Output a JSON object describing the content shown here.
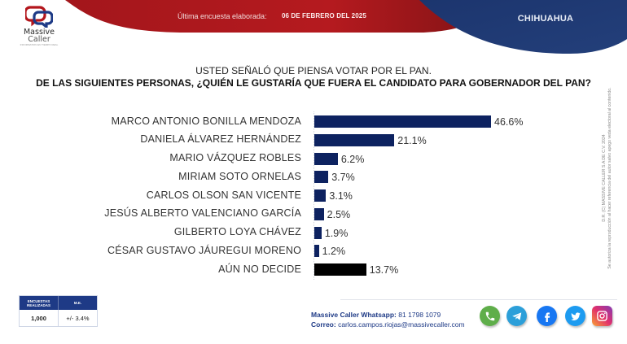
{
  "header": {
    "brand_line1": "Massive",
    "brand_line2": "Caller",
    "brand_tagline": "INFORMATION EN TIEMPO REAL",
    "survey_label": "Última encuesta elaborada:",
    "survey_date": "06 DE FEBRERO DEL 2025",
    "state": "CHIHUAHUA",
    "colors": {
      "red": "#b0181d",
      "navy": "#1f3467"
    }
  },
  "chart_data": {
    "type": "bar",
    "orientation": "horizontal",
    "subtitle": "USTED SEÑALÓ QUE PIENSA VOTAR POR EL PAN.",
    "title": "DE LAS SIGUIENTES PERSONAS, ¿QUIÉN LE GUSTARÍA QUE FUERA EL CANDIDATO PARA GOBERNADOR DEL PAN?",
    "categories": [
      "MARCO ANTONIO BONILLA MENDOZA",
      "DANIELA ÁLVAREZ HERNÁNDEZ",
      "MARIO VÁZQUEZ ROBLES",
      "MIRIAM SOTO ORNELAS",
      "CARLOS OLSON SAN VICENTE",
      "JESÚS ALBERTO VALENCIANO GARCÍA",
      "GILBERTO LOYA CHÁVEZ",
      "CÉSAR GUSTAVO JÁUREGUI MORENO",
      "AÚN NO DECIDE"
    ],
    "values": [
      46.6,
      21.1,
      6.2,
      3.7,
      3.1,
      2.5,
      1.9,
      1.2,
      13.7
    ],
    "value_labels": [
      "46.6%",
      "21.1%",
      "6.2%",
      "3.7%",
      "3.1%",
      "2.5%",
      "1.9%",
      "1.2%",
      "13.7%"
    ],
    "bar_colors": [
      "#0d2260",
      "#0d2260",
      "#0d2260",
      "#0d2260",
      "#0d2260",
      "#0d2260",
      "#0d2260",
      "#0d2260",
      "#000000"
    ],
    "unit": "%",
    "xlim": [
      0,
      50
    ],
    "xlabel": "",
    "ylabel": "",
    "grid": false,
    "legend": "none"
  },
  "copyright": {
    "line1": "D.R. (C) MASSIVE CALLER S.A DE C.V. 2024",
    "line2": "Se autoriza la reproducción al hacer referencia del autor salvo apego veda electoral al contenido."
  },
  "stats": {
    "col1_header": "ENCUESTAS REALIZADAS",
    "col2_header": "M.E.",
    "col1_value": "1,000",
    "col2_value": "+/- 3.4%"
  },
  "contact": {
    "whatsapp_label": "Massive Caller Whatsapp:",
    "whatsapp_value": "81 1798 1079",
    "email_label": "Correo:",
    "email_value": "carlos.campos.riojas@massivecaller.com"
  },
  "social": [
    {
      "icon": "whatsapp-icon",
      "color": "#4caf50"
    },
    {
      "icon": "telegram-icon",
      "color": "#2aa3de"
    },
    {
      "icon": "facebook-icon",
      "color": "#1877f2"
    },
    {
      "icon": "twitter-icon",
      "color": "#1da1f2"
    },
    {
      "icon": "instagram-icon",
      "color": "#c13584"
    }
  ]
}
